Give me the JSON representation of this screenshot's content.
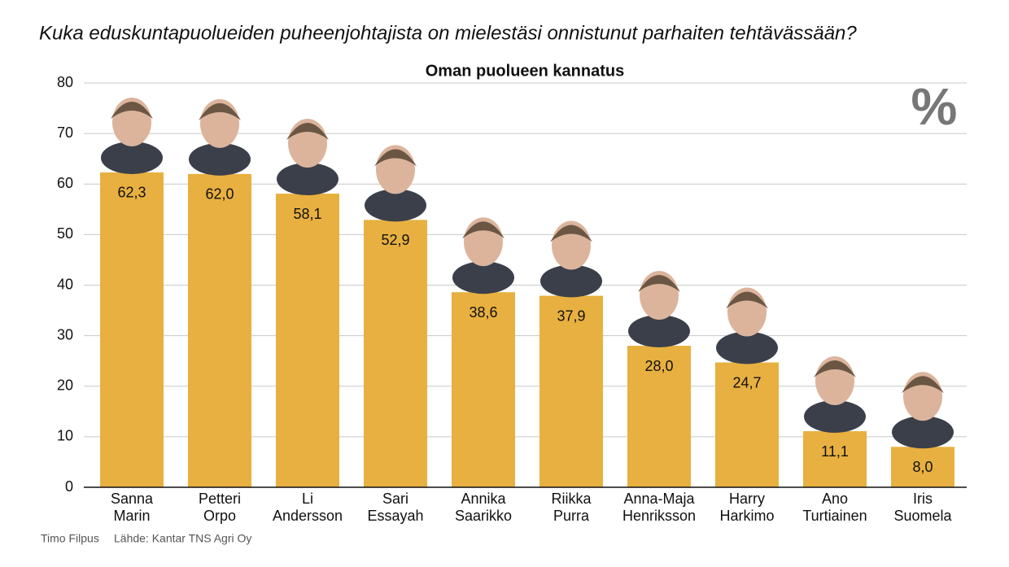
{
  "chart_data": {
    "type": "bar",
    "title": "Kuka eduskuntapuolueiden puheenjohtajista on mielestäsi onnistunut parhaiten tehtävässään?",
    "subtitle": "Oman puolueen kannatus",
    "unit": "%",
    "categories": [
      "Sanna Marin",
      "Petteri Orpo",
      "Li Andersson",
      "Sari Essayah",
      "Annika Saarikko",
      "Riikka Purra",
      "Anna-Maja Henriksson",
      "Harry Harkimo",
      "Ano Turtiainen",
      "Iris Suomela"
    ],
    "values": [
      62.3,
      62.0,
      58.1,
      52.9,
      38.6,
      37.9,
      28.0,
      24.7,
      11.1,
      8.0
    ],
    "value_labels": [
      "62,3",
      "62,0",
      "58,1",
      "52,9",
      "38,6",
      "37,9",
      "28,0",
      "24,7",
      "11,1",
      "8,0"
    ],
    "color": "#e8b040",
    "ylim": [
      0,
      80
    ],
    "yticks": [
      0,
      10,
      20,
      30,
      40,
      50,
      60,
      70,
      80
    ],
    "grid": true,
    "author": "Timo Filpus",
    "source": "Lähde: Kantar TNS Agri Oy"
  }
}
